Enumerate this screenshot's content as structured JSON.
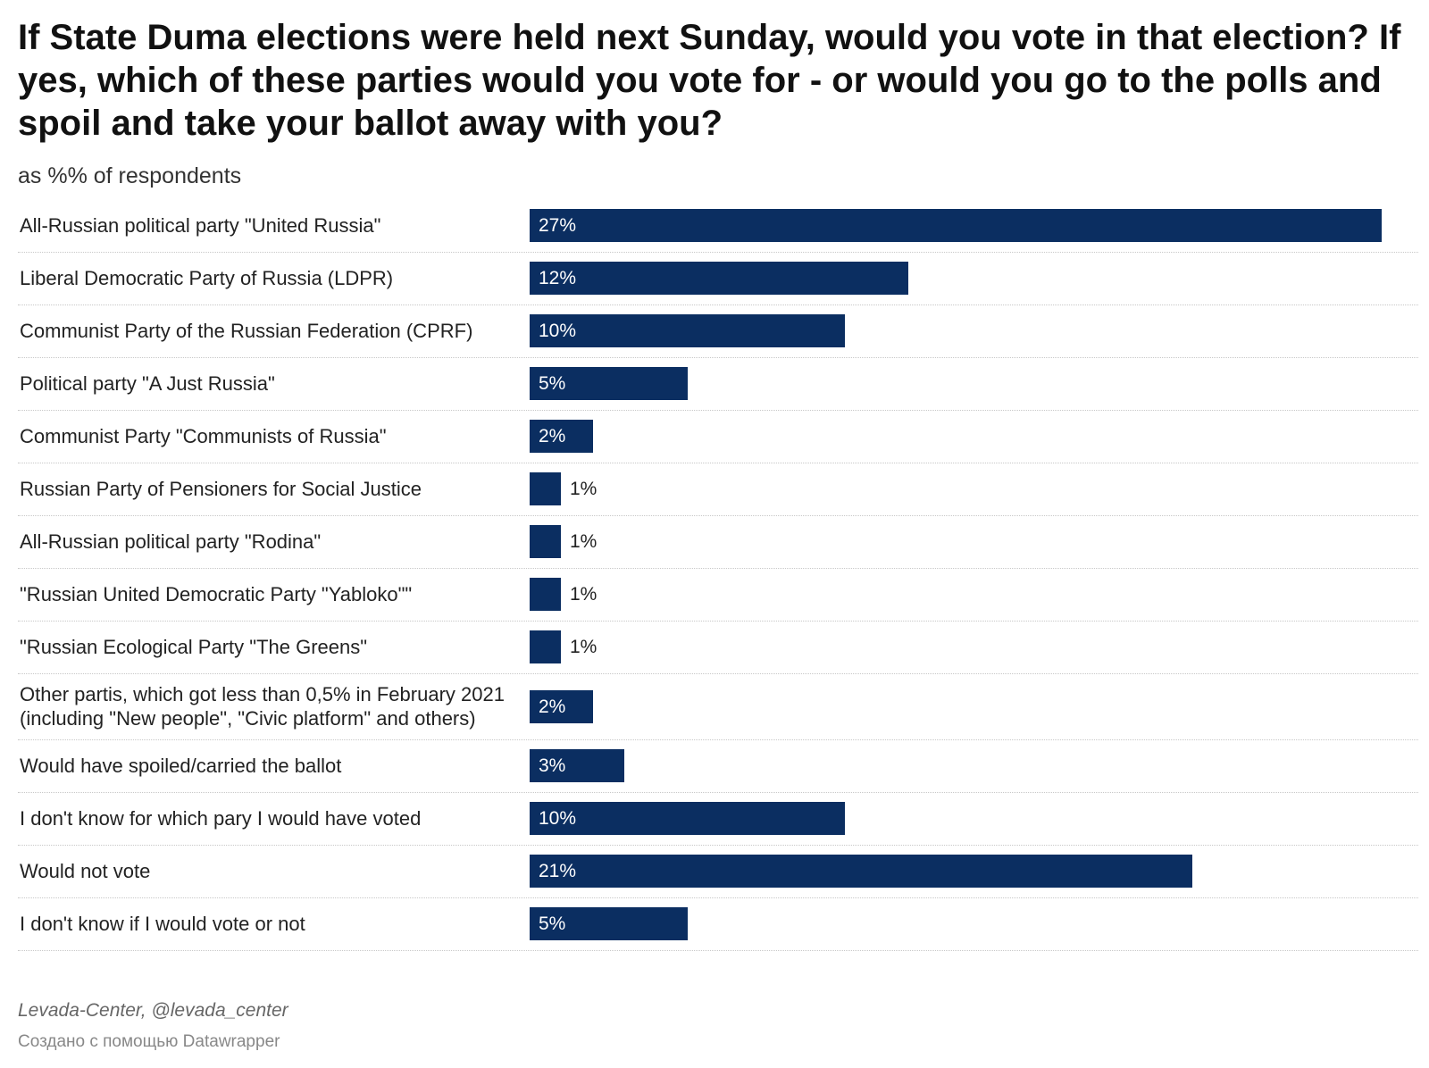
{
  "chart_data": {
    "type": "bar",
    "orientation": "horizontal",
    "title": "If State Duma elections were held next Sunday, would you vote in that election? If yes, which of these parties would you vote for - or would you go to the polls and spoil and take your ballot away with you?",
    "subtitle": "as %% of respondents",
    "categories": [
      "All-Russian political party \"United Russia\"",
      "Liberal Democratic Party of Russia (LDPR)",
      "Communist Party of the Russian Federation (CPRF)",
      "Political party \"A Just Russia\"",
      "Communist Party \"Communists of Russia\"",
      "Russian Party of Pensioners for Social Justice",
      "All-Russian political party \"Rodina\"",
      "\"Russian United Democratic Party \"Yabloko\"\"",
      "\"Russian Ecological Party \"The Greens\"",
      "Other partis, which got less than 0,5% in February 2021 (including \"New people\", \"Civic platform\" and others)",
      "Would have spoiled/carried the ballot",
      "I don't know for which pary I would have voted",
      "Would not vote",
      "I don't know if I would vote or not"
    ],
    "values": [
      27,
      12,
      10,
      5,
      2,
      1,
      1,
      1,
      1,
      2,
      3,
      10,
      21,
      5
    ],
    "value_labels": [
      "27%",
      "12%",
      "10%",
      "5%",
      "2%",
      "1%",
      "1%",
      "1%",
      "1%",
      "2%",
      "3%",
      "10%",
      "21%",
      "5%"
    ],
    "xlim": [
      0,
      27
    ],
    "bar_color": "#0b2e61",
    "grid": false,
    "legend": "none"
  },
  "footer": {
    "source": "Levada-Center, @levada_center",
    "credit": "Создано с помощью Datawrapper"
  }
}
